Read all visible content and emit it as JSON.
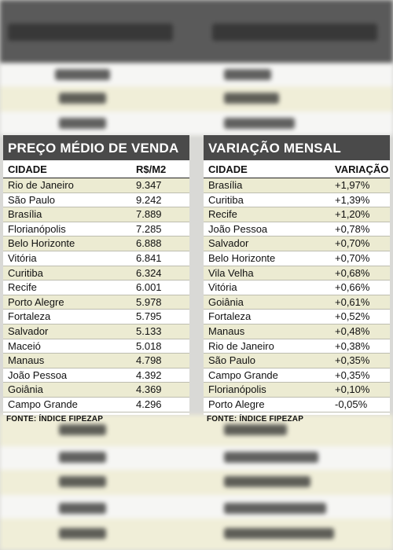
{
  "left": {
    "title": "PREÇO MÉDIO DE VENDA",
    "col_city": "CIDADE",
    "col_value": "R$/M2",
    "rows": [
      {
        "city": "Rio de Janeiro",
        "value": "9.347"
      },
      {
        "city": "São Paulo",
        "value": "9.242"
      },
      {
        "city": "Brasília",
        "value": "7.889"
      },
      {
        "city": "Florianópolis",
        "value": "7.285"
      },
      {
        "city": "Belo Horizonte",
        "value": "6.888"
      },
      {
        "city": "Vitória",
        "value": "6.841"
      },
      {
        "city": "Curitiba",
        "value": "6.324"
      },
      {
        "city": "Recife",
        "value": "6.001"
      },
      {
        "city": "Porto Alegre",
        "value": "5.978"
      },
      {
        "city": "Fortaleza",
        "value": "5.795"
      },
      {
        "city": "Salvador",
        "value": "5.133"
      },
      {
        "city": "Maceió",
        "value": "5.018"
      },
      {
        "city": "Manaus",
        "value": "4.798"
      },
      {
        "city": "João Pessoa",
        "value": "4.392"
      },
      {
        "city": "Goiânia",
        "value": "4.369"
      },
      {
        "city": "Campo Grande",
        "value": "4.296"
      }
    ],
    "source": "FONTE: ÍNDICE FIPEZAP"
  },
  "right": {
    "title": "VARIAÇÃO MENSAL",
    "col_city": "CIDADE",
    "col_value": "VARIAÇÃO",
    "rows": [
      {
        "city": "Brasília",
        "value": "+1,97%"
      },
      {
        "city": "Curitiba",
        "value": "+1,39%"
      },
      {
        "city": "Recife",
        "value": "+1,20%"
      },
      {
        "city": "João Pessoa",
        "value": "+0,78%"
      },
      {
        "city": "Salvador",
        "value": "+0,70%"
      },
      {
        "city": "Belo Horizonte",
        "value": "+0,70%"
      },
      {
        "city": "Vila Velha",
        "value": "+0,68%"
      },
      {
        "city": "Vitória",
        "value": "+0,66%"
      },
      {
        "city": "Goiânia",
        "value": "+0,61%"
      },
      {
        "city": "Fortaleza",
        "value": "+0,52%"
      },
      {
        "city": "Manaus",
        "value": "+0,48%"
      },
      {
        "city": "Rio de Janeiro",
        "value": "+0,38%"
      },
      {
        "city": "São Paulo",
        "value": "+0,35%"
      },
      {
        "city": "Campo Grande",
        "value": "+0,35%"
      },
      {
        "city": "Florianópolis",
        "value": "+0,10%"
      },
      {
        "city": "Porto Alegre",
        "value": "-0,05%"
      }
    ],
    "source": "FONTE: ÍNDICE FIPEZAP"
  },
  "colors": {
    "title_bg": "#4a4a4a",
    "row_stripe": "#ecebd2",
    "backdrop": "#d9d9d6"
  }
}
